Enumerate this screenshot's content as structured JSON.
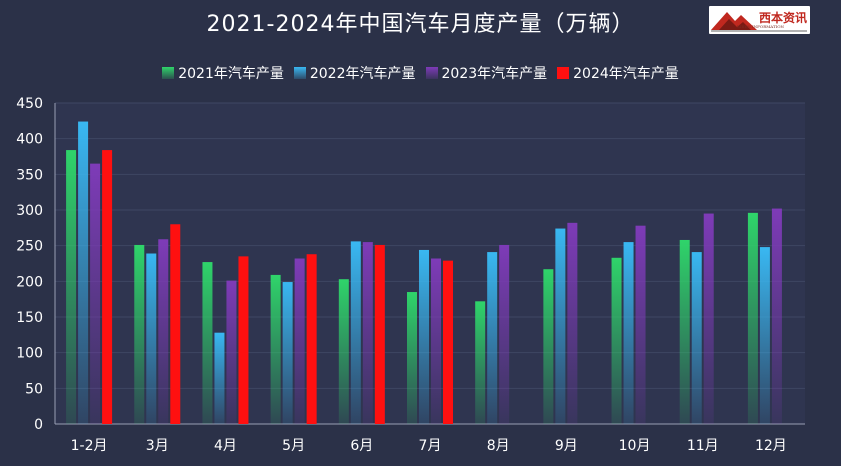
{
  "chart_data": {
    "type": "bar",
    "title": "2021-2024年中国汽车月度产量（万辆）",
    "categories": [
      "1-2月",
      "3月",
      "4月",
      "5月",
      "6月",
      "7月",
      "8月",
      "9月",
      "10月",
      "11月",
      "12月"
    ],
    "series": [
      {
        "name": "2021年汽车产量",
        "color": "#2fd46a",
        "values": [
          384,
          251,
          227,
          209,
          203,
          185,
          172,
          217,
          233,
          258,
          296
        ]
      },
      {
        "name": "2022年汽车产量",
        "color": "#39b8f2",
        "values": [
          424,
          239,
          128,
          199,
          256,
          244,
          241,
          274,
          255,
          241,
          248
        ]
      },
      {
        "name": "2023年汽车产量",
        "color": "#7e3bb8",
        "values": [
          365,
          259,
          201,
          232,
          255,
          232,
          251,
          282,
          278,
          295,
          302
        ]
      },
      {
        "name": "2024年汽车产量",
        "color": "#ff1010",
        "values": [
          384,
          280,
          235,
          238,
          251,
          229,
          null,
          null,
          null,
          null,
          null
        ]
      }
    ],
    "yticks": [
      0,
      50,
      100,
      150,
      200,
      250,
      300,
      350,
      400,
      450
    ],
    "ylim": [
      0,
      450
    ],
    "xlabel": "",
    "ylabel": "",
    "grid": true,
    "legend_position": "top-center"
  },
  "logo": {
    "text": "西本资讯",
    "subtext": "XIBEN INFORMATION"
  }
}
